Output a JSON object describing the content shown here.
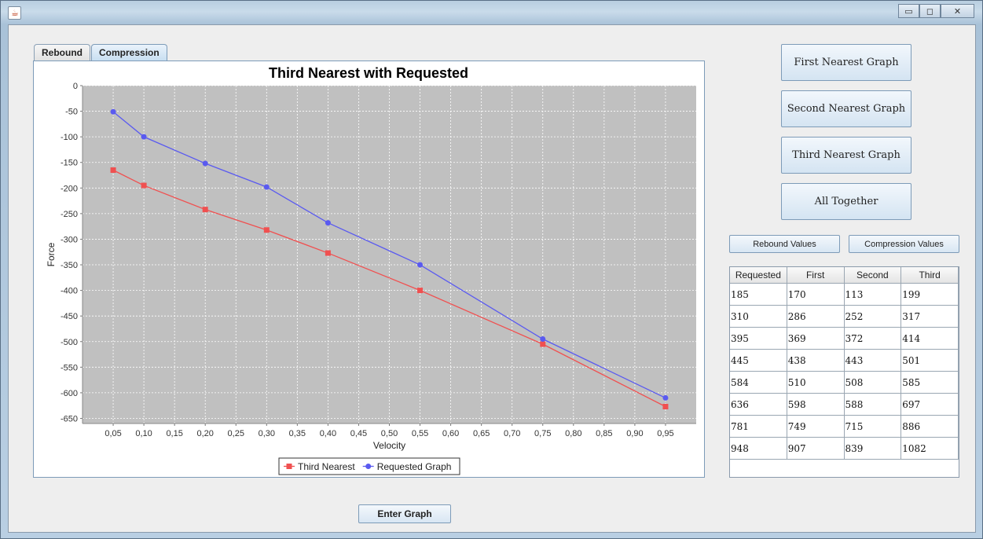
{
  "window": {
    "icon": "java-cup-icon",
    "controls": {
      "minimize": "▭",
      "maximize": "◻",
      "close": "✕"
    }
  },
  "tabs": [
    {
      "label": "Rebound",
      "active": false
    },
    {
      "label": "Compression",
      "active": true
    }
  ],
  "buttons": {
    "first": "First Nearest Graph",
    "second": "Second Nearest Graph",
    "third": "Third Nearest Graph",
    "all": "All Together",
    "rebound_values": "Rebound Values",
    "compression_values": "Compression Values",
    "enter_graph": "Enter Graph"
  },
  "table": {
    "headers": [
      "Requested",
      "First",
      "Second",
      "Third"
    ],
    "rows": [
      [
        "185",
        "170",
        "113",
        "199"
      ],
      [
        "310",
        "286",
        "252",
        "317"
      ],
      [
        "395",
        "369",
        "372",
        "414"
      ],
      [
        "445",
        "438",
        "443",
        "501"
      ],
      [
        "584",
        "510",
        "508",
        "585"
      ],
      [
        "636",
        "598",
        "588",
        "697"
      ],
      [
        "781",
        "749",
        "715",
        "886"
      ],
      [
        "948",
        "907",
        "839",
        "1082"
      ]
    ]
  },
  "chart_data": {
    "type": "line",
    "title": "Third Nearest with Requested",
    "xlabel": "Velocity",
    "ylabel": "Force",
    "xlim": [
      0.0,
      1.0
    ],
    "ylim": [
      -660,
      0
    ],
    "x_ticks": [
      "0,05",
      "0,10",
      "0,15",
      "0,20",
      "0,25",
      "0,30",
      "0,35",
      "0,40",
      "0,45",
      "0,50",
      "0,55",
      "0,60",
      "0,65",
      "0,70",
      "0,75",
      "0,80",
      "0,85",
      "0,90",
      "0,95"
    ],
    "y_ticks": [
      "0",
      "-50",
      "-100",
      "-150",
      "-200",
      "-250",
      "-300",
      "-350",
      "-400",
      "-450",
      "-500",
      "-550",
      "-600",
      "-650"
    ],
    "grid": true,
    "legend_position": "bottom-center",
    "series": [
      {
        "name": "Third Nearest",
        "color": "#f05050",
        "marker": "square",
        "x": [
          0.05,
          0.1,
          0.2,
          0.3,
          0.4,
          0.55,
          0.75,
          0.95
        ],
        "y": [
          -165,
          -195,
          -242,
          -282,
          -327,
          -400,
          -505,
          -627
        ]
      },
      {
        "name": "Requested Graph",
        "color": "#5a5af0",
        "marker": "circle",
        "x": [
          0.05,
          0.1,
          0.2,
          0.3,
          0.4,
          0.55,
          0.75,
          0.95
        ],
        "y": [
          -51,
          -100,
          -152,
          -198,
          -268,
          -350,
          -495,
          -610
        ]
      }
    ]
  }
}
